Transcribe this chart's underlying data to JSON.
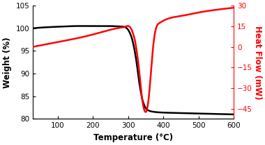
{
  "tg_x": [
    30,
    60,
    100,
    150,
    200,
    250,
    280,
    290,
    295,
    300,
    305,
    310,
    315,
    320,
    325,
    330,
    335,
    340,
    345,
    350,
    355,
    360,
    370,
    380,
    400,
    450,
    500,
    550,
    600
  ],
  "tg_y": [
    100.0,
    100.2,
    100.35,
    100.5,
    100.5,
    100.5,
    100.4,
    100.3,
    100.1,
    99.7,
    99.0,
    98.0,
    96.5,
    94.5,
    92.0,
    89.0,
    86.5,
    84.5,
    83.2,
    82.4,
    82.0,
    81.8,
    81.6,
    81.5,
    81.4,
    81.3,
    81.2,
    81.1,
    81.0
  ],
  "dsc_x": [
    30,
    60,
    100,
    150,
    200,
    250,
    280,
    290,
    295,
    300,
    305,
    310,
    315,
    320,
    325,
    330,
    335,
    340,
    345,
    350,
    355,
    360,
    365,
    370,
    375,
    380,
    390,
    400,
    450,
    500,
    550,
    600
  ],
  "dsc_y": [
    0.0,
    1.5,
    3.5,
    6.0,
    9.0,
    12.5,
    14.0,
    14.5,
    15.0,
    15.2,
    14.5,
    12.5,
    9.0,
    4.0,
    -4.0,
    -14.0,
    -26.0,
    -38.0,
    -45.0,
    -47.5,
    -44.0,
    -34.0,
    -18.0,
    -3.0,
    8.0,
    14.0,
    17.5,
    19.0,
    22.5,
    25.0,
    27.0,
    28.5
  ],
  "tg_color": "#000000",
  "dsc_color": "#ff0000",
  "xlim": [
    30,
    600
  ],
  "tg_ylim": [
    80,
    105
  ],
  "dsc_ylim": [
    -52.5,
    30
  ],
  "xticks": [
    100,
    200,
    300,
    400,
    500,
    600
  ],
  "tg_yticks": [
    80,
    85,
    90,
    95,
    100,
    105
  ],
  "dsc_yticks": [
    -45,
    -30,
    -15,
    0,
    15,
    30
  ],
  "xlabel": "Temperature (°C)",
  "ylabel_left": "Weight (%)",
  "ylabel_right": "Heat Flow (mW)",
  "linewidth": 1.8,
  "bg_color": "#ffffff",
  "tick_label_fontsize": 7.5,
  "axis_label_fontsize": 8.5
}
